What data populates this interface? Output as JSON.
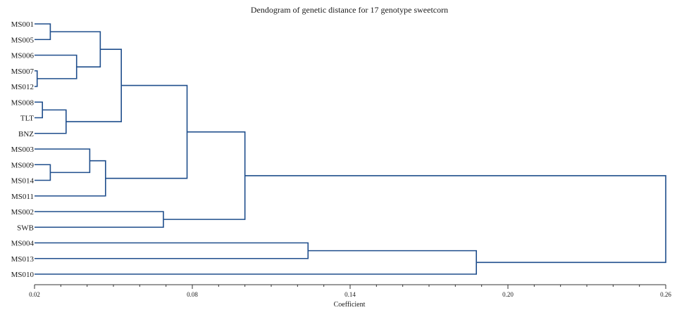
{
  "chart_data": {
    "type": "dendrogram",
    "title": "Dendogram of genetic distance for 17 genotype sweetcorn",
    "xlabel": "Coefficient",
    "xlim": [
      0.02,
      0.26
    ],
    "major_ticks": [
      0.02,
      0.08,
      0.14,
      0.2,
      0.26
    ],
    "major_tick_labels": [
      "0.02",
      "0.08",
      "0.14",
      "0.20",
      "0.26"
    ],
    "minor_tick_step": 0.01,
    "line_color": "#1f4e8c",
    "leaves": [
      "MS001",
      "MS005",
      "MS006",
      "MS007",
      "MS012",
      "MS008",
      "TLT",
      "BNZ",
      "MS003",
      "MS009",
      "MS014",
      "MS011",
      "MS002",
      "SWB",
      "MS004",
      "MS013",
      "MS010"
    ],
    "merges": [
      {
        "left": "MS007",
        "right": "MS012",
        "height": 0.021
      },
      {
        "left": "MS008",
        "right": "TLT",
        "height": 0.023
      },
      {
        "left": "MS001",
        "right": "MS005",
        "height": 0.026
      },
      {
        "left": "MS009",
        "right": "MS014",
        "height": 0.026
      },
      {
        "left": "MS006",
        "right": 0,
        "height": 0.036
      },
      {
        "left": 1,
        "right": "BNZ",
        "height": 0.032
      },
      {
        "left": "MS003",
        "right": 3,
        "height": 0.041
      },
      {
        "left": 2,
        "right": 4,
        "height": 0.045
      },
      {
        "left": 6,
        "right": "MS011",
        "height": 0.047
      },
      {
        "left": 7,
        "right": 5,
        "height": 0.053
      },
      {
        "left": "MS002",
        "right": "SWB",
        "height": 0.069
      },
      {
        "left": 9,
        "right": 8,
        "height": 0.078
      },
      {
        "left": 11,
        "right": 10,
        "height": 0.1
      },
      {
        "left": "MS004",
        "right": "MS013",
        "height": 0.124
      },
      {
        "left": 13,
        "right": "MS010",
        "height": 0.188
      },
      {
        "left": 12,
        "right": 14,
        "height": 0.26
      }
    ]
  }
}
